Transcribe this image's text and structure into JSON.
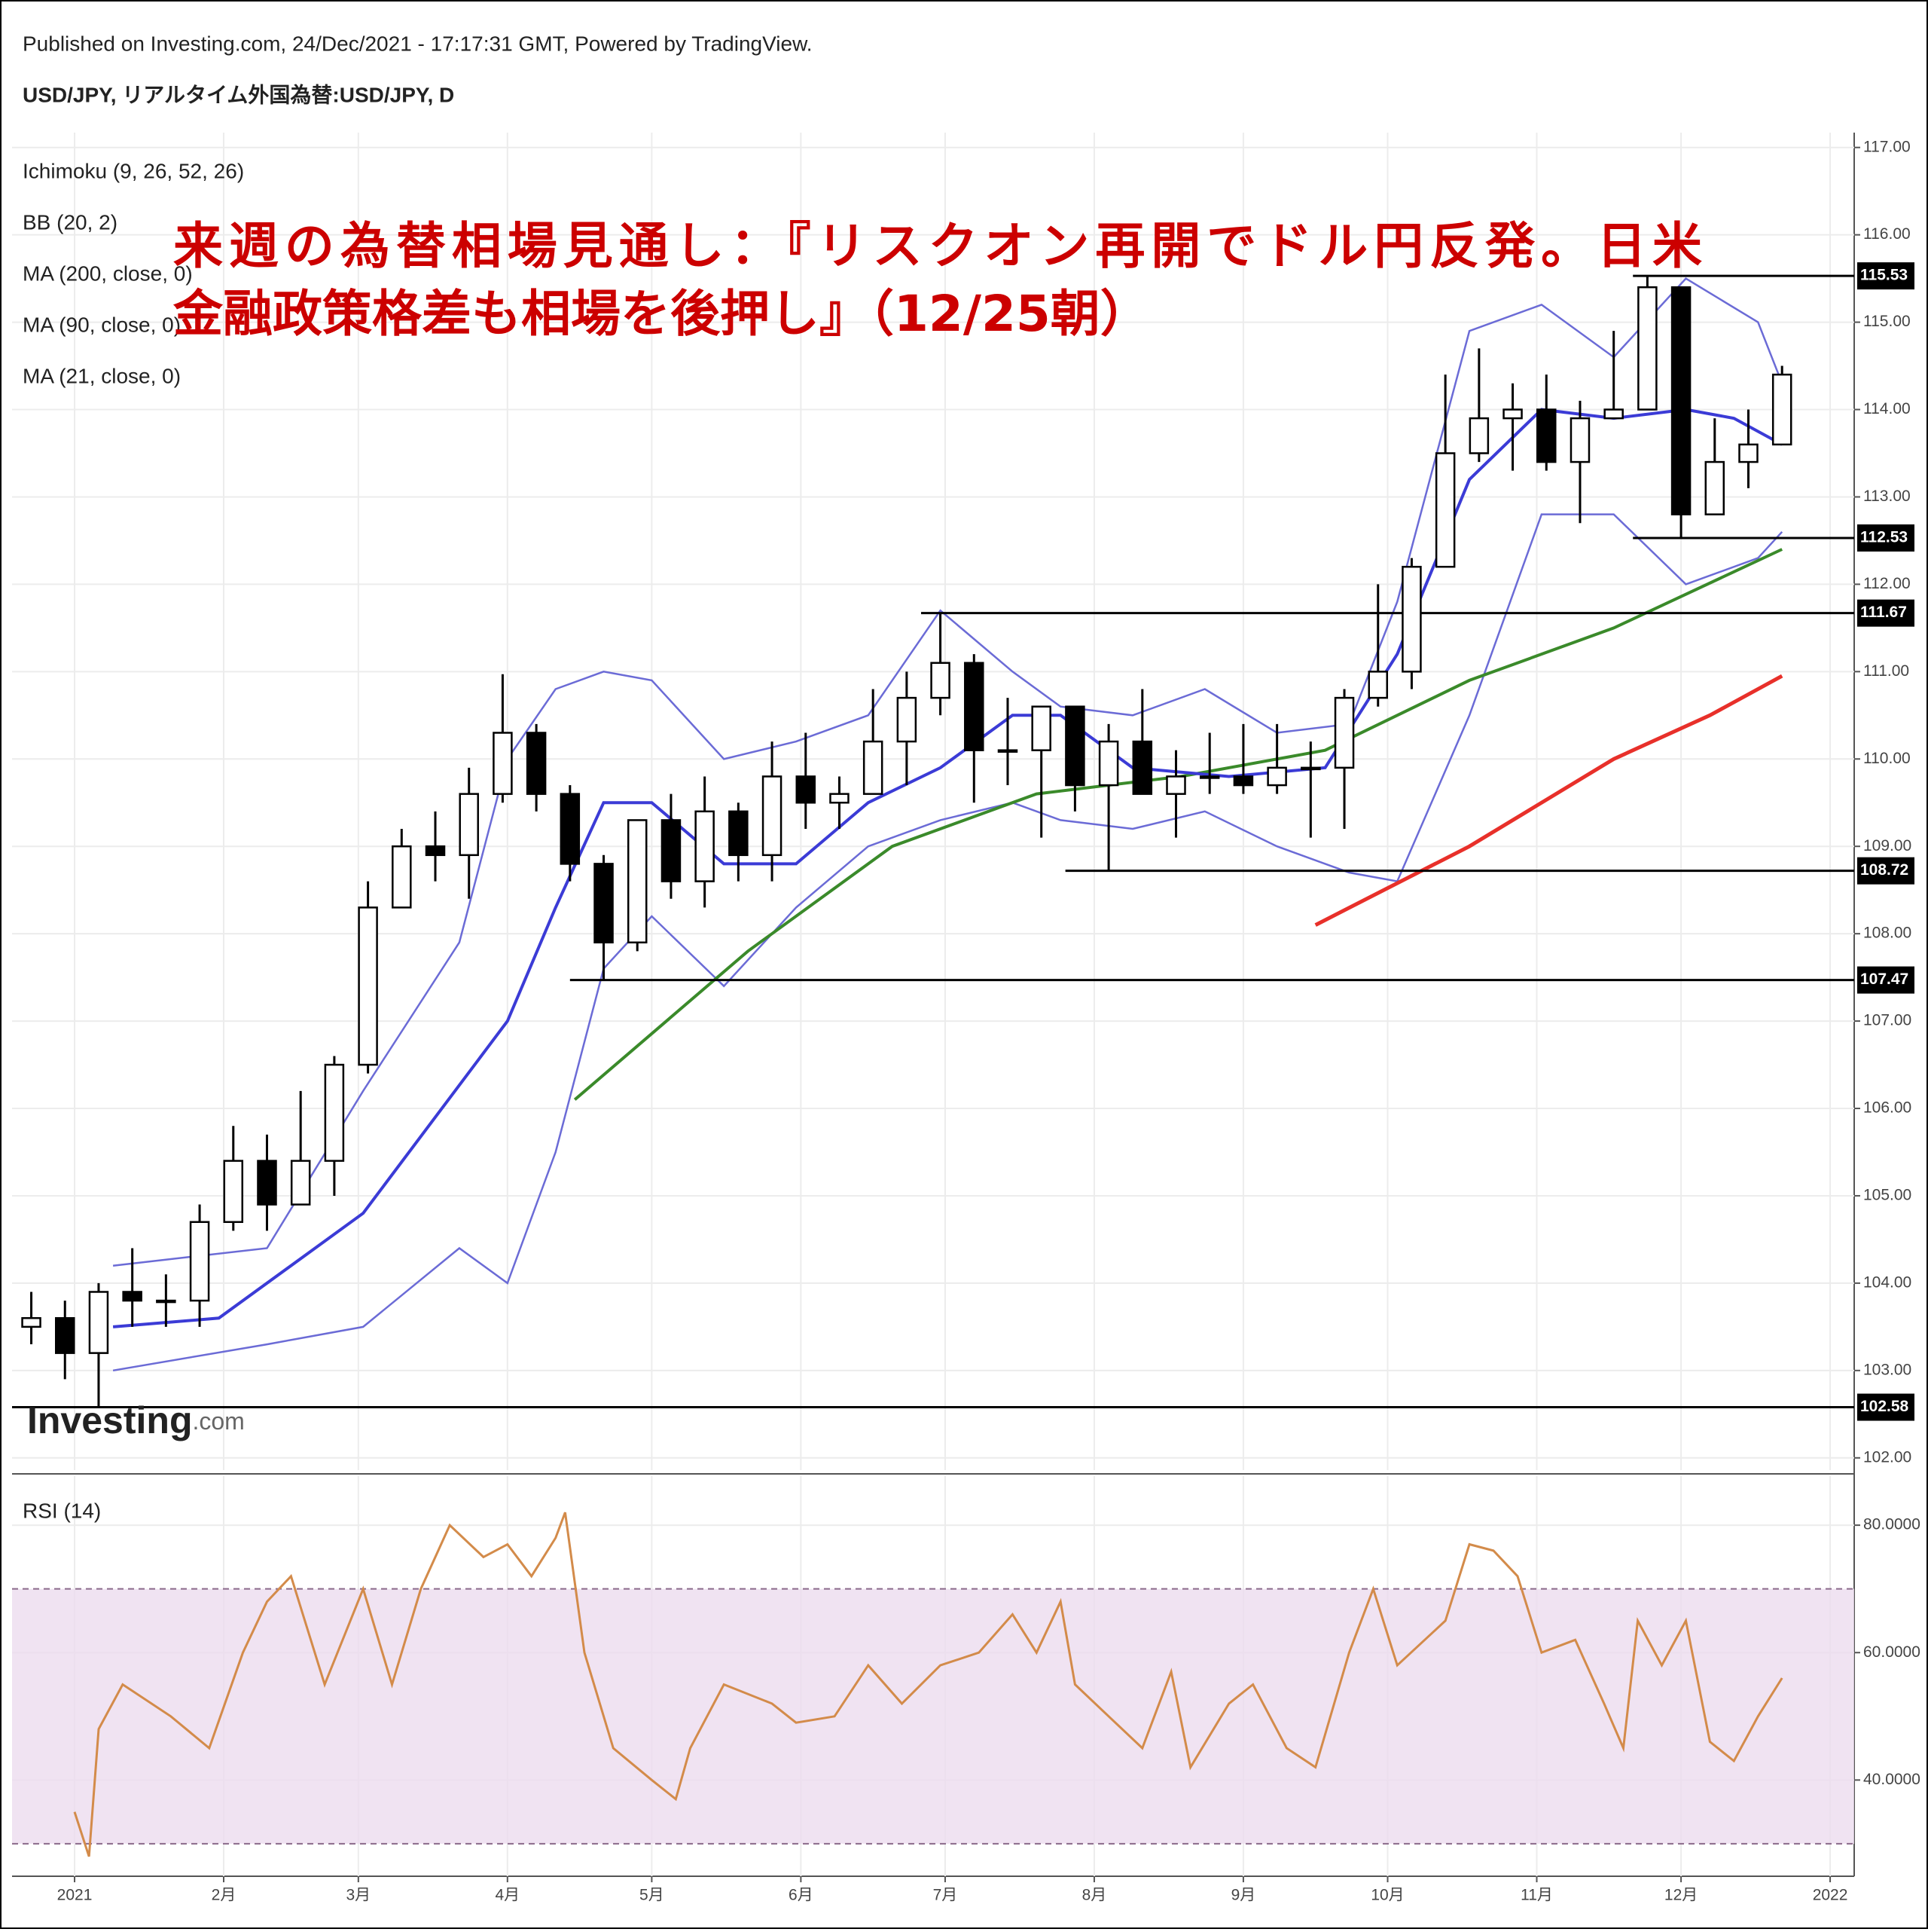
{
  "header": {
    "published": "Published on Investing.com, 24/Dec/2021 - 17:17:31 GMT, Powered by TradingView.",
    "symbol": "USD/JPY, リアルタイム外国為替:USD/JPY, D"
  },
  "headline": [
    "来週の為替相場見通し：『リスクオン再開でドル円反発。日米",
    "金融政策格差も相場を後押し』（12/25朝）"
  ],
  "logo": {
    "text": "Investing",
    "suffix": ".com"
  },
  "chart_data": [
    {
      "type": "candlestick",
      "legend_extra": [
        "Ichimoku (9, 26, 52, 26)"
      ],
      "xlim": [
        -13,
        370
      ],
      "ylim": [
        101.86,
        117.17
      ],
      "yticks": [
        {
          "value": 102,
          "label": "102.00"
        },
        {
          "value": 103,
          "label": "103.00"
        },
        {
          "value": 104,
          "label": "104.00"
        },
        {
          "value": 105,
          "label": "105.00"
        },
        {
          "value": 106,
          "label": "106.00"
        },
        {
          "value": 107,
          "label": "107.00"
        },
        {
          "value": 108,
          "label": "108.00"
        },
        {
          "value": 109,
          "label": "109.00"
        },
        {
          "value": 110,
          "label": "110.00"
        },
        {
          "value": 111,
          "label": "111.00"
        },
        {
          "value": 112,
          "label": "112.00"
        },
        {
          "value": 113,
          "label": "113.00"
        },
        {
          "value": 114,
          "label": "114.00"
        },
        {
          "value": 115,
          "label": "115.00"
        },
        {
          "value": 116,
          "label": "116.00"
        },
        {
          "value": 117,
          "label": "117.00"
        }
      ],
      "grid": true,
      "up_color": "#ffffff",
      "down_color": "#000000",
      "x": [
        -9,
        -2,
        5,
        12,
        19,
        26,
        33,
        40,
        47,
        54,
        61,
        68,
        75,
        82,
        89,
        96,
        103,
        110,
        117,
        124,
        131,
        138,
        145,
        152,
        159,
        166,
        173,
        180,
        187,
        194,
        201,
        208,
        215,
        222,
        229,
        236,
        243,
        250,
        257,
        264,
        271,
        278,
        285,
        292,
        299,
        306,
        313,
        320,
        327,
        334,
        341,
        348,
        355
      ],
      "open": [
        103.5,
        103.6,
        103.2,
        103.9,
        103.8,
        103.8,
        104.7,
        105.4,
        104.9,
        105.4,
        106.5,
        108.3,
        109.0,
        108.9,
        109.6,
        110.3,
        109.6,
        108.8,
        107.9,
        109.3,
        108.6,
        109.4,
        108.9,
        109.8,
        109.5,
        109.6,
        110.2,
        110.7,
        111.1,
        110.1,
        110.1,
        110.6,
        109.7,
        110.2,
        109.6,
        109.8,
        109.8,
        109.7,
        109.9,
        109.9,
        110.7,
        111.0,
        112.2,
        113.5,
        113.9,
        114.0,
        113.4,
        113.9,
        114.0,
        115.4,
        112.8,
        113.4,
        113.6
      ],
      "high": [
        103.9,
        103.8,
        104.0,
        104.4,
        104.1,
        104.9,
        105.8,
        105.7,
        106.2,
        106.6,
        108.6,
        109.2,
        109.4,
        109.9,
        110.97,
        110.4,
        109.7,
        108.9,
        109.3,
        109.6,
        109.8,
        109.5,
        110.2,
        110.3,
        109.8,
        110.8,
        111.0,
        111.67,
        111.2,
        110.7,
        110.6,
        110.6,
        110.4,
        110.8,
        110.1,
        110.3,
        110.4,
        110.4,
        110.2,
        110.8,
        112.0,
        112.3,
        114.4,
        114.7,
        114.3,
        114.4,
        114.1,
        114.9,
        115.53,
        115.4,
        113.9,
        114.0,
        114.5
      ],
      "low": [
        103.3,
        102.9,
        102.58,
        103.5,
        103.5,
        103.5,
        104.6,
        104.6,
        104.9,
        105.0,
        106.4,
        108.4,
        108.6,
        108.4,
        109.5,
        109.4,
        108.6,
        107.47,
        107.8,
        108.4,
        108.3,
        108.6,
        108.6,
        109.2,
        109.2,
        109.6,
        109.7,
        110.5,
        109.5,
        109.7,
        109.1,
        109.4,
        108.72,
        109.6,
        109.1,
        109.6,
        109.6,
        109.6,
        109.1,
        109.2,
        110.6,
        110.8,
        112.2,
        113.4,
        113.3,
        113.3,
        112.7,
        113.9,
        114.0,
        112.53,
        112.8,
        113.1,
        113.6
      ],
      "close": [
        103.6,
        103.2,
        103.9,
        103.8,
        103.8,
        104.7,
        105.4,
        104.9,
        105.4,
        106.5,
        108.3,
        109.0,
        108.9,
        109.6,
        110.3,
        109.6,
        108.8,
        107.9,
        109.3,
        108.6,
        109.4,
        108.9,
        109.8,
        109.5,
        109.6,
        110.2,
        110.7,
        111.1,
        110.1,
        110.1,
        110.6,
        109.7,
        110.2,
        109.6,
        109.8,
        109.8,
        109.7,
        109.9,
        109.9,
        110.7,
        111.0,
        112.2,
        113.5,
        113.9,
        114.0,
        113.4,
        113.9,
        114.0,
        115.4,
        112.8,
        113.4,
        113.6,
        114.4
      ],
      "bands": {
        "name": "BB (20, 2)",
        "color": "#6b6bd6",
        "x": [
          8,
          40,
          60,
          80,
          90,
          100,
          110,
          120,
          135,
          150,
          165,
          180,
          195,
          205,
          220,
          235,
          250,
          265,
          275,
          290,
          305,
          320,
          335,
          350,
          355
        ],
        "upper": [
          104.2,
          104.4,
          106.2,
          107.9,
          110.0,
          110.8,
          111.0,
          110.9,
          110.0,
          110.2,
          110.5,
          111.7,
          111.0,
          110.6,
          110.5,
          110.8,
          110.3,
          110.4,
          111.8,
          114.9,
          115.2,
          114.6,
          115.5,
          115.0,
          114.3
        ],
        "lower": [
          103.0,
          103.3,
          103.5,
          104.4,
          104.0,
          105.5,
          107.6,
          108.2,
          107.4,
          108.3,
          109.0,
          109.3,
          109.5,
          109.3,
          109.2,
          109.4,
          109.0,
          108.7,
          108.6,
          110.5,
          112.8,
          112.8,
          112.0,
          112.3,
          112.6
        ]
      },
      "series": [
        {
          "name": "MA (200, close, 0)",
          "color": "#e8302a",
          "x": [
            258,
            290,
            320,
            340,
            355
          ],
          "values": [
            108.1,
            109.0,
            110.0,
            110.5,
            110.95
          ]
        },
        {
          "name": "MA (90, close, 0)",
          "color": "#3a8a2a",
          "x": [
            104,
            140,
            170,
            200,
            230,
            260,
            290,
            320,
            355
          ],
          "values": [
            106.1,
            107.8,
            109.0,
            109.6,
            109.8,
            110.1,
            110.9,
            111.5,
            112.4
          ]
        },
        {
          "name": "MA (21, close, 0)",
          "color": "#3b3bd6",
          "x": [
            8,
            30,
            60,
            90,
            100,
            110,
            120,
            135,
            150,
            165,
            180,
            195,
            205,
            220,
            240,
            260,
            275,
            290,
            305,
            320,
            335,
            345,
            355
          ],
          "values": [
            103.5,
            103.6,
            104.8,
            107.0,
            108.3,
            109.5,
            109.5,
            108.8,
            108.8,
            109.5,
            109.9,
            110.5,
            110.5,
            109.9,
            109.8,
            109.9,
            111.2,
            113.2,
            114.0,
            113.9,
            114.0,
            113.9,
            113.6
          ]
        }
      ],
      "levels": [
        {
          "value": 115.53,
          "start": 324
        },
        {
          "value": 112.53,
          "start": 324
        },
        {
          "value": 111.67,
          "start": 176
        },
        {
          "value": 108.72,
          "start": 206
        },
        {
          "value": 107.47,
          "start": 103
        },
        {
          "value": 102.58,
          "start": -13
        }
      ]
    },
    {
      "type": "line",
      "title": "RSI (14)",
      "xlim": [
        -13,
        370
      ],
      "ylim": [
        24.9,
        87.7
      ],
      "yticks": [
        {
          "value": 40,
          "label": "40.0000"
        },
        {
          "value": 60,
          "label": "60.0000"
        },
        {
          "value": 80,
          "label": "80.0000"
        }
      ],
      "xticks": [
        {
          "value": 0,
          "label": "2021"
        },
        {
          "value": 31,
          "label": "2月"
        },
        {
          "value": 59,
          "label": "3月"
        },
        {
          "value": 90,
          "label": "4月"
        },
        {
          "value": 120,
          "label": "5月"
        },
        {
          "value": 151,
          "label": "6月"
        },
        {
          "value": 181,
          "label": "7月"
        },
        {
          "value": 212,
          "label": "8月"
        },
        {
          "value": 243,
          "label": "9月"
        },
        {
          "value": 273,
          "label": "10月"
        },
        {
          "value": 304,
          "label": "11月"
        },
        {
          "value": 334,
          "label": "12月"
        },
        {
          "value": 365,
          "label": "2022"
        }
      ],
      "grid": true,
      "overbought": 70,
      "oversold": 30,
      "series": [
        {
          "color": "#d38b4a",
          "x": [
            0,
            3,
            5,
            10,
            20,
            28,
            35,
            40,
            45,
            52,
            60,
            66,
            72,
            78,
            85,
            90,
            95,
            100,
            102,
            106,
            112,
            120,
            125,
            128,
            135,
            145,
            150,
            158,
            165,
            172,
            180,
            188,
            195,
            200,
            205,
            208,
            215,
            222,
            228,
            232,
            240,
            245,
            252,
            258,
            265,
            270,
            275,
            285,
            290,
            295,
            300,
            305,
            312,
            318,
            322,
            325,
            330,
            335,
            340,
            345,
            350,
            355
          ],
          "values": [
            35,
            28,
            48,
            55,
            50,
            45,
            60,
            68,
            72,
            55,
            70,
            55,
            70,
            80,
            75,
            77,
            72,
            78,
            82,
            60,
            45,
            40,
            37,
            45,
            55,
            52,
            49,
            50,
            58,
            52,
            58,
            60,
            66,
            60,
            68,
            55,
            50,
            45,
            57,
            42,
            52,
            55,
            45,
            42,
            60,
            70,
            58,
            65,
            77,
            76,
            72,
            60,
            62,
            52,
            45,
            65,
            58,
            65,
            46,
            43,
            50,
            56
          ]
        }
      ]
    }
  ]
}
